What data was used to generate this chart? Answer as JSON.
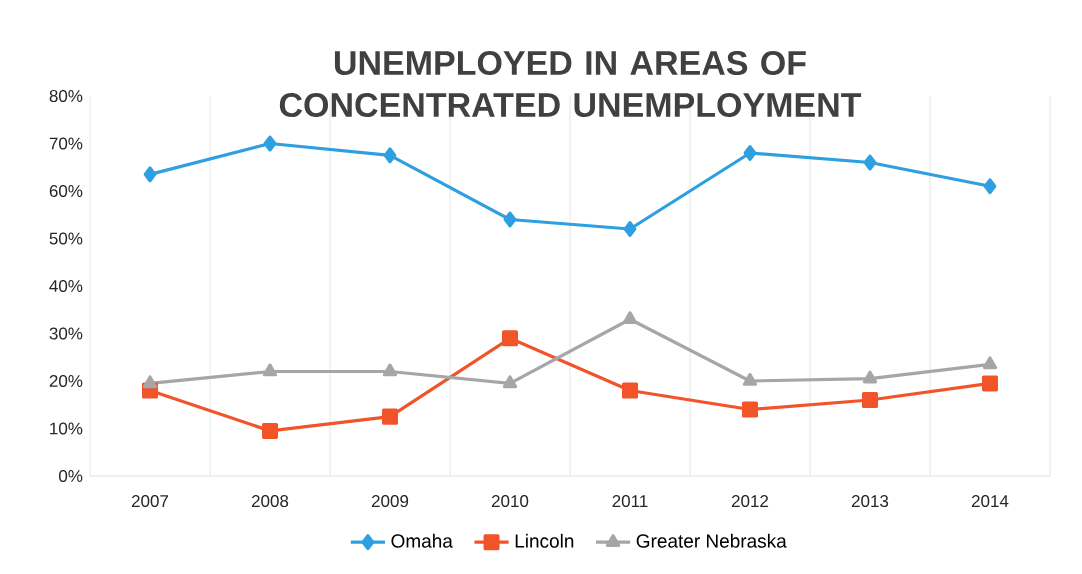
{
  "chart_data": {
    "type": "line",
    "title": "UNEMPLOYED IN AREAS OF CONCENTRATED UNEMPLOYMENT",
    "categories": [
      "2007",
      "2008",
      "2009",
      "2010",
      "2011",
      "2012",
      "2013",
      "2014"
    ],
    "series": [
      {
        "name": "Omaha",
        "color": "#2e9fe0",
        "marker": "diamond",
        "values": [
          63.5,
          70,
          67.5,
          54,
          52,
          68,
          66,
          61
        ]
      },
      {
        "name": "Lincoln",
        "color": "#f2542a",
        "marker": "square",
        "values": [
          18,
          9.5,
          12.5,
          29,
          18,
          14,
          16,
          19.5
        ]
      },
      {
        "name": "Greater Nebraska",
        "color": "#a6a6a6",
        "marker": "triangle",
        "values": [
          19.5,
          22,
          22,
          19.5,
          33,
          20,
          20.5,
          23.5
        ]
      }
    ],
    "ylim": [
      0,
      80
    ],
    "yticks": [
      {
        "value": 0,
        "label": "0%"
      },
      {
        "value": 10,
        "label": "10%"
      },
      {
        "value": 20,
        "label": "20%"
      },
      {
        "value": 30,
        "label": "30%"
      },
      {
        "value": 40,
        "label": "40%"
      },
      {
        "value": 50,
        "label": "50%"
      },
      {
        "value": 60,
        "label": "60%"
      },
      {
        "value": 70,
        "label": "70%"
      },
      {
        "value": 80,
        "label": "80%"
      }
    ],
    "grid": "x",
    "legend": "bottom",
    "line_style": "solid"
  }
}
